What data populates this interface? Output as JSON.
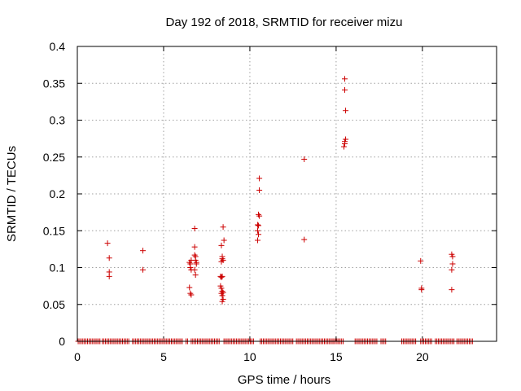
{
  "chart_data": {
    "type": "scatter",
    "title": "Day 192 of 2018, SRMTID for receiver mizu",
    "xlabel": "GPS time / hours",
    "ylabel": "SRMTID / TECUs",
    "xlim": [
      0,
      24.3
    ],
    "ylim": [
      0,
      0.4
    ],
    "xticks": [
      0,
      5,
      10,
      15,
      20
    ],
    "xtick_labels": [
      "0",
      "5",
      "10",
      "15",
      "20"
    ],
    "yticks": [
      0,
      0.05,
      0.1,
      0.15,
      0.2,
      0.25,
      0.3,
      0.35,
      0.4
    ],
    "ytick_labels": [
      "0",
      "0.05",
      "0.1",
      "0.15",
      "0.2",
      "0.25",
      "0.3",
      "0.35",
      "0.4"
    ],
    "grid": true,
    "marker": "+",
    "color": "#cc0000",
    "series": [
      {
        "name": "SRMTID",
        "points": [
          [
            1.75,
            0.133
          ],
          [
            1.85,
            0.113
          ],
          [
            1.85,
            0.094
          ],
          [
            1.85,
            0.088
          ],
          [
            3.8,
            0.123
          ],
          [
            3.8,
            0.097
          ],
          [
            6.5,
            0.107
          ],
          [
            6.55,
            0.105
          ],
          [
            6.6,
            0.11
          ],
          [
            6.55,
            0.1
          ],
          [
            6.6,
            0.097
          ],
          [
            6.5,
            0.073
          ],
          [
            6.55,
            0.065
          ],
          [
            6.6,
            0.063
          ],
          [
            6.8,
            0.153
          ],
          [
            6.8,
            0.128
          ],
          [
            6.8,
            0.117
          ],
          [
            6.85,
            0.115
          ],
          [
            6.85,
            0.11
          ],
          [
            6.9,
            0.107
          ],
          [
            6.9,
            0.105
          ],
          [
            6.8,
            0.097
          ],
          [
            6.85,
            0.09
          ],
          [
            8.45,
            0.155
          ],
          [
            8.5,
            0.137
          ],
          [
            8.35,
            0.13
          ],
          [
            8.4,
            0.115
          ],
          [
            8.4,
            0.112
          ],
          [
            8.45,
            0.11
          ],
          [
            8.35,
            0.108
          ],
          [
            8.3,
            0.088
          ],
          [
            8.35,
            0.087
          ],
          [
            8.4,
            0.088
          ],
          [
            8.3,
            0.075
          ],
          [
            8.35,
            0.072
          ],
          [
            8.4,
            0.068
          ],
          [
            8.45,
            0.066
          ],
          [
            8.35,
            0.065
          ],
          [
            8.4,
            0.062
          ],
          [
            8.45,
            0.057
          ],
          [
            8.4,
            0.054
          ],
          [
            10.55,
            0.221
          ],
          [
            10.55,
            0.205
          ],
          [
            10.5,
            0.172
          ],
          [
            10.55,
            0.17
          ],
          [
            10.45,
            0.158
          ],
          [
            10.5,
            0.157
          ],
          [
            10.45,
            0.15
          ],
          [
            10.5,
            0.145
          ],
          [
            10.45,
            0.137
          ],
          [
            13.15,
            0.247
          ],
          [
            13.15,
            0.138
          ],
          [
            15.5,
            0.356
          ],
          [
            15.5,
            0.341
          ],
          [
            15.55,
            0.313
          ],
          [
            15.55,
            0.274
          ],
          [
            15.5,
            0.271
          ],
          [
            15.5,
            0.268
          ],
          [
            15.45,
            0.264
          ],
          [
            19.9,
            0.109
          ],
          [
            19.95,
            0.072
          ],
          [
            19.95,
            0.07
          ],
          [
            21.7,
            0.118
          ],
          [
            21.75,
            0.115
          ],
          [
            21.75,
            0.105
          ],
          [
            21.7,
            0.097
          ],
          [
            21.7,
            0.07
          ]
        ]
      },
      {
        "name": "zero-level",
        "x_ranges": [
          [
            0.05,
            1.35
          ],
          [
            1.45,
            3.0
          ],
          [
            3.2,
            6.15
          ],
          [
            6.3,
            6.45
          ],
          [
            6.6,
            8.3
          ],
          [
            8.5,
            10.25
          ],
          [
            10.6,
            12.55
          ],
          [
            12.7,
            14.95
          ],
          [
            15.05,
            15.45
          ],
          [
            16.1,
            17.4
          ],
          [
            17.6,
            17.9
          ],
          [
            18.8,
            19.65
          ],
          [
            19.9,
            20.6
          ],
          [
            20.75,
            21.9
          ],
          [
            22.0,
            22.95
          ]
        ],
        "step": 0.09,
        "y": 0
      }
    ]
  }
}
